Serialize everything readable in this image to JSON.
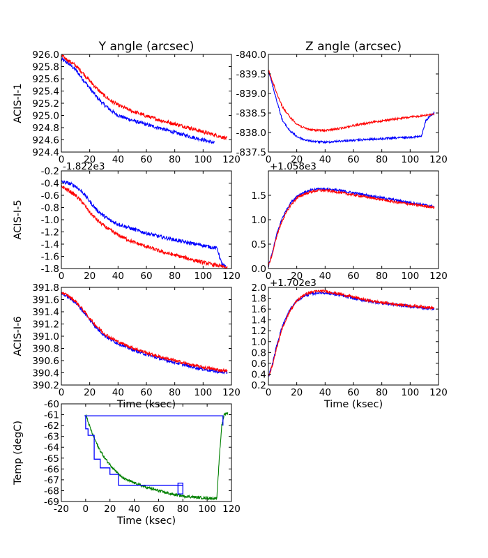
{
  "chart_data": [
    {
      "type": "line",
      "title": "Y angle (arcsec)",
      "ylabel": "ACIS-I-1",
      "xlabel": "",
      "offset_label": "",
      "xlim": [
        0,
        120
      ],
      "ylim": [
        924.4,
        926.0
      ],
      "invert_y": false,
      "xticks": [
        "0",
        "20",
        "40",
        "60",
        "80",
        "100",
        "120"
      ],
      "yticks": [
        "926.0",
        "925.8",
        "925.6",
        "925.4",
        "925.2",
        "925.0",
        "924.8",
        "924.6",
        "924.4"
      ],
      "ytick_values": [
        926.0,
        925.8,
        925.6,
        925.4,
        925.2,
        925.0,
        924.8,
        924.6,
        924.4
      ],
      "series": [
        {
          "name": "blue",
          "color": "#0000ff",
          "noise": 0.03,
          "x": [
            0,
            5,
            10,
            15,
            20,
            25,
            30,
            35,
            40,
            50,
            60,
            70,
            80,
            90,
            100,
            108
          ],
          "y": [
            925.92,
            925.85,
            925.75,
            925.6,
            925.45,
            925.3,
            925.18,
            925.08,
            925.0,
            924.92,
            924.85,
            924.79,
            924.72,
            924.66,
            924.6,
            924.55
          ]
        },
        {
          "name": "red",
          "color": "#ff0000",
          "noise": 0.03,
          "x": [
            0,
            5,
            10,
            15,
            20,
            25,
            30,
            35,
            40,
            50,
            60,
            70,
            80,
            90,
            100,
            110,
            117
          ],
          "y": [
            925.98,
            925.9,
            925.82,
            925.7,
            925.57,
            925.44,
            925.33,
            925.24,
            925.17,
            925.07,
            924.99,
            924.92,
            924.86,
            924.8,
            924.73,
            924.67,
            924.62
          ]
        }
      ]
    },
    {
      "type": "line",
      "title": "Z angle (arcsec)",
      "ylabel": "",
      "xlabel": "",
      "offset_label": "",
      "xlim": [
        0,
        120
      ],
      "ylim": [
        -840.0,
        -837.5
      ],
      "invert_y": true,
      "xticks": [
        "0",
        "20",
        "40",
        "60",
        "80",
        "100",
        "120"
      ],
      "yticks": [
        "-837.5",
        "-838.0",
        "-838.5",
        "-839.0",
        "-839.5",
        "-840.0"
      ],
      "ytick_values": [
        -837.5,
        -838.0,
        -838.5,
        -839.0,
        -839.5,
        -840.0
      ],
      "series": [
        {
          "name": "blue",
          "color": "#0000ff",
          "noise": 0.025,
          "x": [
            0,
            3,
            6,
            10,
            15,
            20,
            25,
            30,
            40,
            50,
            60,
            70,
            80,
            90,
            100,
            108,
            111,
            115,
            117
          ],
          "y": [
            -839.6,
            -839.2,
            -838.8,
            -838.3,
            -838.05,
            -837.9,
            -837.82,
            -837.78,
            -837.75,
            -837.78,
            -837.8,
            -837.82,
            -837.84,
            -837.86,
            -837.88,
            -837.9,
            -838.3,
            -838.45,
            -838.5
          ]
        },
        {
          "name": "red",
          "color": "#ff0000",
          "noise": 0.025,
          "x": [
            0,
            3,
            6,
            10,
            15,
            20,
            25,
            30,
            40,
            50,
            60,
            70,
            80,
            90,
            100,
            110,
            117
          ],
          "y": [
            -839.6,
            -839.3,
            -839.0,
            -838.65,
            -838.4,
            -838.22,
            -838.12,
            -838.07,
            -838.05,
            -838.1,
            -838.18,
            -838.24,
            -838.3,
            -838.35,
            -838.39,
            -838.44,
            -838.47
          ]
        }
      ]
    },
    {
      "type": "line",
      "title": "",
      "ylabel": "ACIS-I-5",
      "xlabel": "",
      "offset_label": "-1.822e3",
      "xlim": [
        0,
        120
      ],
      "ylim": [
        -1.8,
        -0.2
      ],
      "invert_y": false,
      "xticks": [
        "0",
        "20",
        "40",
        "60",
        "80",
        "100",
        "120"
      ],
      "yticks": [
        "-0.2",
        "-0.4",
        "-0.6",
        "-0.8",
        "-1.0",
        "-1.2",
        "-1.4",
        "-1.6",
        "-1.8"
      ],
      "ytick_values": [
        -0.2,
        -0.4,
        -0.6,
        -0.8,
        -1.0,
        -1.2,
        -1.4,
        -1.6,
        -1.8
      ],
      "series": [
        {
          "name": "blue",
          "color": "#0000ff",
          "noise": 0.03,
          "x": [
            0,
            5,
            10,
            15,
            20,
            25,
            30,
            35,
            40,
            50,
            60,
            70,
            80,
            90,
            100,
            110,
            113,
            116
          ],
          "y": [
            -0.38,
            -0.4,
            -0.45,
            -0.55,
            -0.7,
            -0.84,
            -0.94,
            -1.02,
            -1.07,
            -1.15,
            -1.22,
            -1.28,
            -1.33,
            -1.38,
            -1.42,
            -1.47,
            -1.72,
            -1.78
          ]
        },
        {
          "name": "red",
          "color": "#ff0000",
          "noise": 0.03,
          "x": [
            0,
            5,
            10,
            15,
            20,
            25,
            30,
            35,
            40,
            50,
            60,
            70,
            80,
            90,
            100,
            110,
            117
          ],
          "y": [
            -0.45,
            -0.52,
            -0.6,
            -0.72,
            -0.88,
            -1.0,
            -1.1,
            -1.18,
            -1.25,
            -1.36,
            -1.44,
            -1.52,
            -1.58,
            -1.64,
            -1.7,
            -1.75,
            -1.79
          ]
        }
      ]
    },
    {
      "type": "line",
      "title": "",
      "ylabel": "",
      "xlabel": "",
      "offset_label": "+1.058e3",
      "xlim": [
        0,
        120
      ],
      "ylim": [
        0.0,
        2.0
      ],
      "invert_y": false,
      "xticks": [
        "0",
        "20",
        "40",
        "60",
        "80",
        "100",
        "120"
      ],
      "yticks": [
        "0.0",
        "0.5",
        "1.0",
        "1.5"
      ],
      "ytick_values": [
        0.0,
        0.5,
        1.0,
        1.5
      ],
      "series": [
        {
          "name": "blue",
          "color": "#0000ff",
          "noise": 0.025,
          "x": [
            0,
            3,
            6,
            10,
            15,
            20,
            25,
            30,
            35,
            40,
            50,
            60,
            70,
            80,
            90,
            100,
            110,
            117
          ],
          "y": [
            0.05,
            0.35,
            0.72,
            1.05,
            1.32,
            1.48,
            1.56,
            1.6,
            1.63,
            1.63,
            1.6,
            1.55,
            1.5,
            1.45,
            1.4,
            1.35,
            1.3,
            1.27
          ]
        },
        {
          "name": "red",
          "color": "#ff0000",
          "noise": 0.025,
          "x": [
            0,
            3,
            6,
            10,
            15,
            20,
            25,
            30,
            35,
            40,
            50,
            60,
            70,
            80,
            90,
            100,
            110,
            117
          ],
          "y": [
            0.05,
            0.32,
            0.68,
            1.0,
            1.27,
            1.44,
            1.52,
            1.57,
            1.6,
            1.6,
            1.56,
            1.51,
            1.46,
            1.41,
            1.36,
            1.32,
            1.28,
            1.25
          ]
        }
      ]
    },
    {
      "type": "line",
      "title": "",
      "ylabel": "ACIS-I-6",
      "xlabel": "Time (ksec)",
      "offset_label": "",
      "xlim": [
        0,
        120
      ],
      "ylim": [
        390.2,
        391.8
      ],
      "invert_y": false,
      "xticks": [
        "0",
        "20",
        "40",
        "60",
        "80",
        "100",
        "120"
      ],
      "yticks": [
        "391.8",
        "391.6",
        "391.4",
        "391.2",
        "391.0",
        "390.8",
        "390.6",
        "390.4",
        "390.2"
      ],
      "ytick_values": [
        391.8,
        391.6,
        391.4,
        391.2,
        391.0,
        390.8,
        390.6,
        390.4,
        390.2
      ],
      "series": [
        {
          "name": "blue",
          "color": "#0000ff",
          "noise": 0.025,
          "x": [
            0,
            5,
            10,
            15,
            20,
            25,
            30,
            35,
            40,
            50,
            60,
            70,
            80,
            90,
            100,
            110,
            117
          ],
          "y": [
            391.7,
            391.64,
            391.55,
            391.42,
            391.27,
            391.13,
            391.02,
            390.94,
            390.88,
            390.78,
            390.7,
            390.63,
            390.57,
            390.51,
            390.46,
            390.42,
            390.4
          ]
        },
        {
          "name": "red",
          "color": "#ff0000",
          "noise": 0.025,
          "x": [
            0,
            5,
            10,
            15,
            20,
            25,
            30,
            35,
            40,
            50,
            60,
            70,
            80,
            90,
            100,
            110,
            117
          ],
          "y": [
            391.72,
            391.66,
            391.57,
            391.44,
            391.29,
            391.16,
            391.05,
            390.97,
            390.91,
            390.81,
            390.73,
            390.66,
            390.6,
            390.54,
            390.49,
            390.45,
            390.43
          ]
        }
      ]
    },
    {
      "type": "line",
      "title": "",
      "ylabel": "",
      "xlabel": "Time (ksec)",
      "offset_label": "+1.702e3",
      "xlim": [
        0,
        120
      ],
      "ylim": [
        0.2,
        2.0
      ],
      "invert_y": false,
      "xticks": [
        "0",
        "20",
        "40",
        "60",
        "80",
        "100",
        "120"
      ],
      "yticks": [
        "2.0",
        "1.8",
        "1.6",
        "1.4",
        "1.2",
        "1.0",
        "0.8",
        "0.6",
        "0.4",
        "0.2"
      ],
      "ytick_values": [
        2.0,
        1.8,
        1.6,
        1.4,
        1.2,
        1.0,
        0.8,
        0.6,
        0.4,
        0.2
      ],
      "series": [
        {
          "name": "blue",
          "color": "#0000ff",
          "noise": 0.025,
          "x": [
            0,
            3,
            6,
            10,
            15,
            20,
            25,
            30,
            35,
            40,
            50,
            60,
            70,
            80,
            90,
            100,
            110,
            117
          ],
          "y": [
            0.35,
            0.6,
            0.95,
            1.3,
            1.58,
            1.75,
            1.84,
            1.88,
            1.9,
            1.9,
            1.86,
            1.8,
            1.75,
            1.71,
            1.68,
            1.65,
            1.62,
            1.6
          ]
        },
        {
          "name": "red",
          "color": "#ff0000",
          "noise": 0.025,
          "x": [
            0,
            3,
            6,
            10,
            15,
            20,
            25,
            30,
            35,
            40,
            50,
            60,
            70,
            80,
            90,
            100,
            110,
            117
          ],
          "y": [
            0.35,
            0.58,
            0.9,
            1.26,
            1.56,
            1.75,
            1.86,
            1.91,
            1.93,
            1.93,
            1.88,
            1.82,
            1.76,
            1.72,
            1.69,
            1.66,
            1.64,
            1.62
          ]
        }
      ]
    },
    {
      "type": "line",
      "title": "",
      "ylabel": "Temp (degC)",
      "xlabel": "Time (ksec)",
      "offset_label": "",
      "xlim": [
        -20,
        120
      ],
      "ylim": [
        -69,
        -60
      ],
      "invert_y": false,
      "xticks": [
        "-20",
        "0",
        "20",
        "40",
        "60",
        "80",
        "100",
        "120"
      ],
      "yticks": [
        "-60",
        "-61",
        "-62",
        "-63",
        "-64",
        "-65",
        "-66",
        "-67",
        "-68",
        "-69"
      ],
      "ytick_values": [
        -60,
        -61,
        -62,
        -63,
        -64,
        -65,
        -66,
        -67,
        -68,
        -69
      ],
      "series": [
        {
          "name": "green",
          "color": "#008000",
          "noise": 0.12,
          "x": [
            0,
            5,
            10,
            15,
            20,
            25,
            30,
            40,
            50,
            60,
            70,
            80,
            90,
            100,
            108,
            110,
            112,
            114,
            117
          ],
          "y": [
            -61.0,
            -62.6,
            -63.9,
            -64.9,
            -65.6,
            -66.2,
            -66.8,
            -67.3,
            -67.7,
            -68.0,
            -68.3,
            -68.5,
            -68.6,
            -68.7,
            -68.7,
            -65.0,
            -62.0,
            -61.0,
            -60.8
          ]
        },
        {
          "name": "blue",
          "color": "#0000ff",
          "noise": 0,
          "x": [
            -1,
            113,
            113,
            113,
            110,
            0,
            0,
            2,
            2,
            5,
            7,
            7,
            12,
            12,
            18,
            20,
            20,
            27,
            27,
            80,
            80,
            78,
            76,
            76,
            80,
            80
          ],
          "y": [
            -61.1,
            -61.1,
            -62.0,
            -61.1,
            -61.1,
            -61.1,
            -62.3,
            -62.3,
            -62.9,
            -62.9,
            -62.9,
            -65.1,
            -65.1,
            -65.9,
            -65.9,
            -65.9,
            -66.5,
            -66.5,
            -67.5,
            -67.5,
            -67.3,
            -67.3,
            -67.3,
            -68.3,
            -68.3,
            -67.3
          ]
        }
      ]
    }
  ]
}
